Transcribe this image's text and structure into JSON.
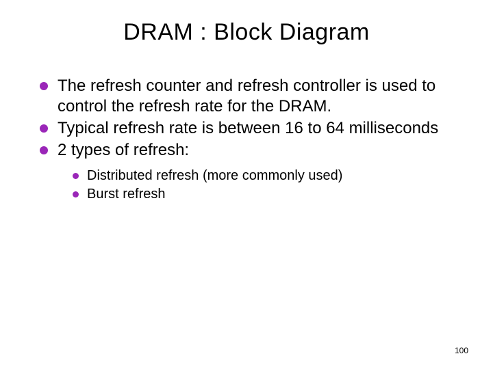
{
  "slide": {
    "title": "DRAM : Block Diagram",
    "title_fontsize": 34,
    "title_color": "#000000",
    "bullets": [
      "The refresh counter and refresh controller is used to control the refresh rate for the DRAM.",
      "Typical refresh rate is between 16 to 64 milliseconds",
      "2 types of refresh:"
    ],
    "bullet_fontsize": 24,
    "bullet_color": "#000000",
    "bullet_dot_color": "#9a26b8",
    "sub_bullets": [
      "Distributed refresh (more commonly used)",
      "Burst refresh"
    ],
    "sub_bullet_fontsize": 20,
    "sub_bullet_dot_color": "#9a26b8",
    "page_number": "100",
    "page_number_fontsize": 12,
    "background_color": "#ffffff"
  }
}
